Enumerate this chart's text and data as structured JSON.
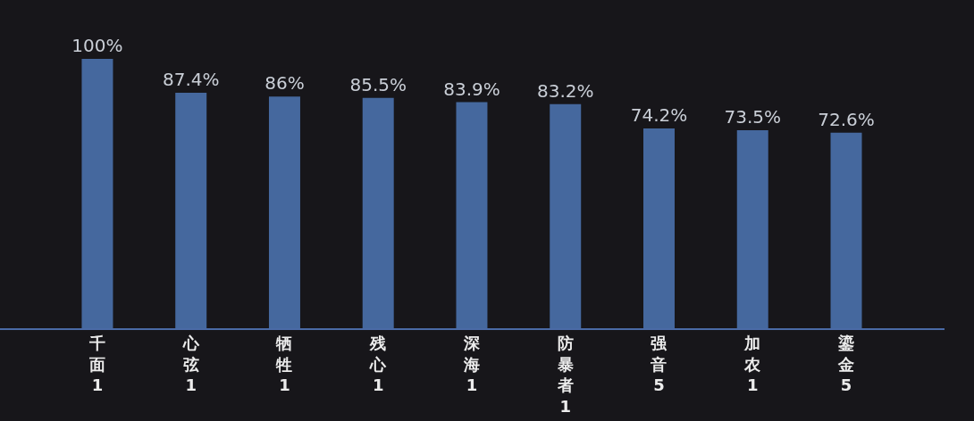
{
  "chart_data": {
    "type": "bar",
    "categories": [
      "千面\n1",
      "心弦\n1",
      "牺牲\n1",
      "残心\n1",
      "深海\n1",
      "防暴者\n1",
      "强音\n5",
      "加农\n1",
      "鎏金\n5"
    ],
    "values": [
      100,
      87.4,
      86,
      85.5,
      83.9,
      83.2,
      74.2,
      73.5,
      72.6
    ],
    "value_labels": [
      "100%",
      "87.4%",
      "86%",
      "85.5%",
      "83.9%",
      "83.2%",
      "74.2%",
      "73.5%",
      "72.6%"
    ],
    "color": "#45689e"
  }
}
